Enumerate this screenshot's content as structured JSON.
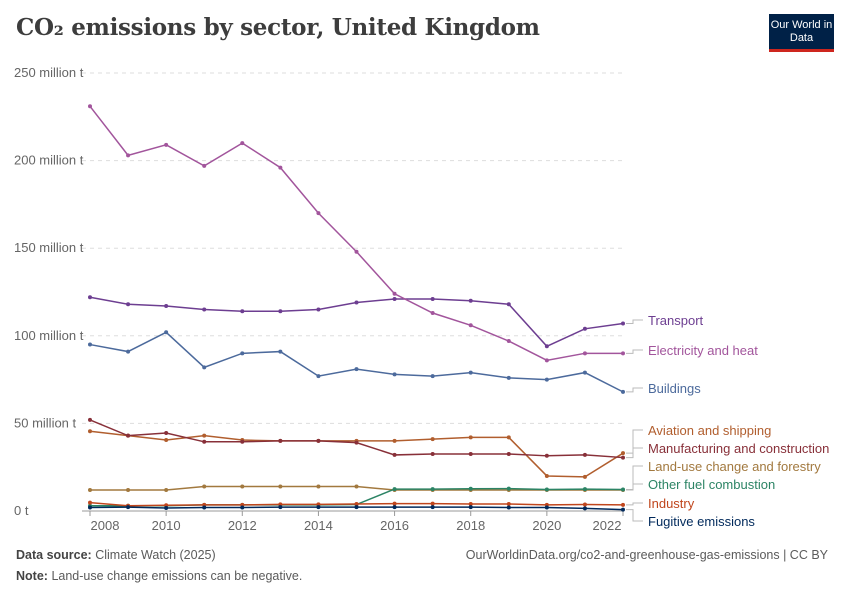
{
  "header": {
    "title": "CO₂ emissions by sector, United Kingdom",
    "logo": "Our World in Data"
  },
  "footer": {
    "source_label": "Data source:",
    "source": "Climate Watch (2025)",
    "url": "OurWorldinData.org/co2-and-greenhouse-gas-emissions | CC BY",
    "note_label": "Note:",
    "note": "Land-use change emissions can be negative."
  },
  "chart_data": {
    "type": "line",
    "title": "CO₂ emissions by sector, United Kingdom",
    "x": [
      2008,
      2009,
      2010,
      2011,
      2012,
      2013,
      2014,
      2015,
      2016,
      2017,
      2018,
      2019,
      2020,
      2021,
      2022
    ],
    "xticks": [
      "2008",
      "2010",
      "2012",
      "2014",
      "2016",
      "2018",
      "2020",
      "2022"
    ],
    "yticks": [
      {
        "v": 0,
        "label": "0 t"
      },
      {
        "v": 50,
        "label": "50 million t"
      },
      {
        "v": 100,
        "label": "100 million t"
      },
      {
        "v": 150,
        "label": "150 million t"
      },
      {
        "v": 200,
        "label": "200 million t"
      },
      {
        "v": 250,
        "label": "250 million t"
      }
    ],
    "ylim": [
      0,
      250
    ],
    "grid": true,
    "legend": "right, inline labels",
    "series": [
      {
        "name": "Transport",
        "color": "#6d3e91",
        "values": [
          122,
          118,
          117,
          115,
          114,
          114,
          115,
          119,
          121,
          121,
          120,
          118,
          94,
          104,
          107
        ]
      },
      {
        "name": "Electricity and heat",
        "color": "#a2559c",
        "values": [
          231,
          203,
          209,
          197,
          210,
          196,
          170,
          148,
          124,
          113,
          106,
          97,
          86,
          90,
          90
        ]
      },
      {
        "name": "Buildings",
        "color": "#4c6a9c",
        "values": [
          95,
          91,
          102,
          82,
          90,
          91,
          77,
          81,
          78,
          77,
          79,
          76,
          75,
          79,
          68
        ]
      },
      {
        "name": "Aviation and shipping",
        "color": "#b15e2e",
        "values": [
          45.5,
          43,
          40.5,
          43,
          40.5,
          40,
          40,
          40,
          40,
          41,
          42,
          42,
          20,
          19.5,
          33
        ]
      },
      {
        "name": "Manufacturing and construction",
        "color": "#883039",
        "values": [
          52,
          43,
          44.5,
          39.5,
          39.5,
          40,
          40,
          39,
          32,
          32.5,
          32.5,
          32.5,
          31.5,
          32,
          30.5
        ]
      },
      {
        "name": "Land-use change and forestry",
        "color": "#a2793f",
        "values": [
          12,
          12,
          12,
          14,
          14,
          14,
          14,
          14,
          12,
          12,
          12,
          12,
          12,
          12,
          12
        ]
      },
      {
        "name": "Other fuel combustion",
        "color": "#2c8465",
        "values": [
          3,
          3,
          3,
          3.5,
          3.5,
          3.5,
          3.5,
          3.7,
          12.5,
          12.5,
          12.7,
          12.8,
          12.3,
          12.5,
          12.3
        ]
      },
      {
        "name": "Industry",
        "color": "#c0461d",
        "values": [
          4.8,
          3,
          3.3,
          3.5,
          3.5,
          3.8,
          3.8,
          4,
          4.2,
          4.2,
          4,
          4,
          3.5,
          3.7,
          3.5
        ]
      },
      {
        "name": "Fugitive emissions",
        "color": "#00295b",
        "values": [
          2,
          2.2,
          1.7,
          2,
          2,
          2.2,
          2.2,
          2.2,
          2.2,
          2.2,
          2.2,
          2,
          2,
          1.5,
          0.8
        ]
      }
    ]
  }
}
